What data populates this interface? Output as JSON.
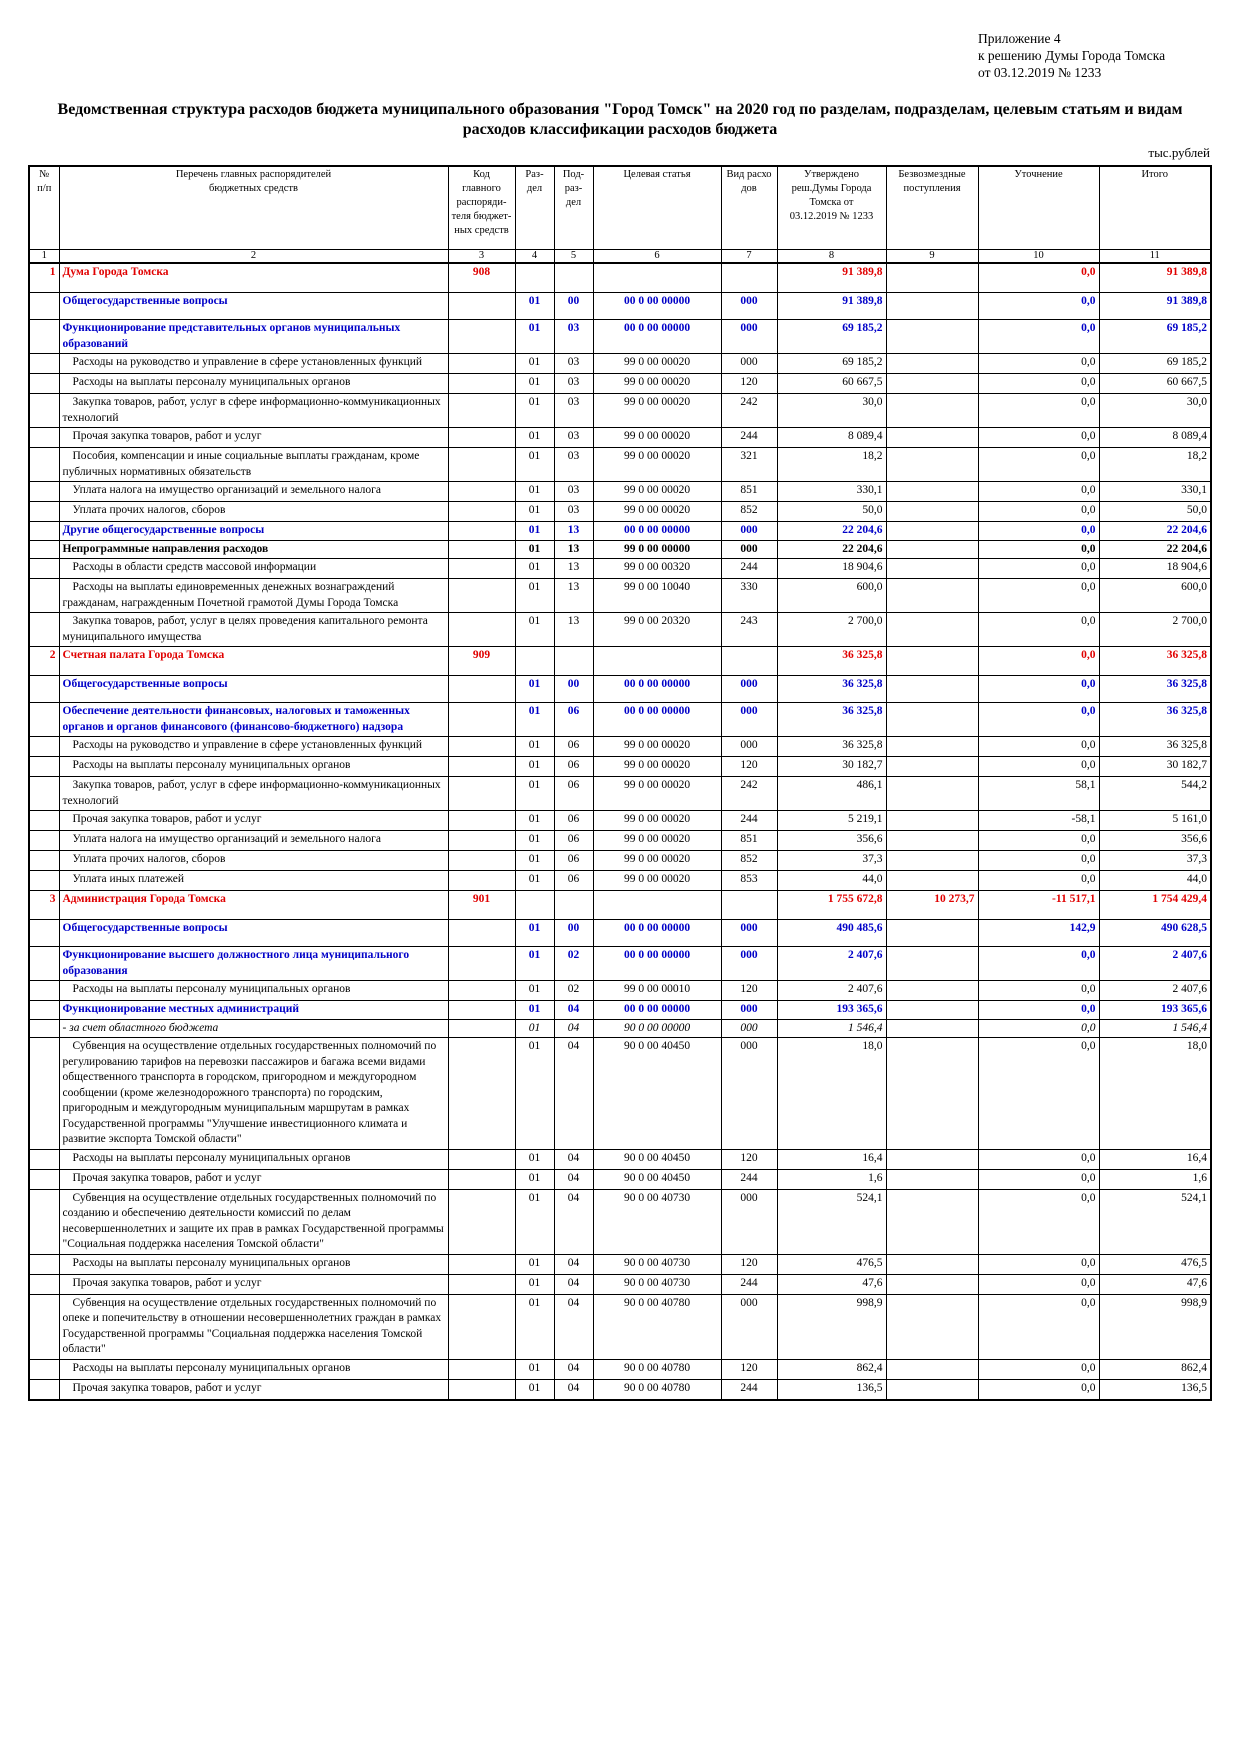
{
  "header": {
    "appendix": [
      "Приложение 4",
      "к решению Думы Города Томска",
      "от 03.12.2019 № 1233"
    ],
    "title": "Ведомственная структура расходов бюджета муниципального образования \"Город Томск\" на 2020 год по разделам, подразделам, целевым статьям и видам расходов классификации расходов бюджета",
    "unit": "тыс.рублей"
  },
  "table": {
    "columns": [
      "№\nп/п",
      "Перечень главных распорядителей\nбюджетных средств",
      "Код\nглавного\nраспоряди-\nтеля бюджет-\nных средств",
      "Раз-\nдел",
      "Под-\nраз-\nдел",
      "Целевая статья",
      "Вид расхо\nдов",
      "Утверждено\nреш.Думы Города\nТомска от\n03.12.2019 № 1233",
      "Безвозмездные\nпоступления",
      "Уточнение",
      "Итого"
    ],
    "column_numbers": [
      "1",
      "2",
      "3",
      "4",
      "5",
      "6",
      "7",
      "8",
      "9",
      "10",
      "11"
    ],
    "rows": [
      {
        "style": "org",
        "cells": [
          "1",
          "Дума Города Томска",
          "908",
          null,
          null,
          null,
          null,
          "91 389,8",
          null,
          "0,0",
          "91 389,8"
        ]
      },
      {
        "style": "section",
        "cells": [
          null,
          "Общегосударственные вопросы",
          null,
          "01",
          "00",
          "00 0 00 00000",
          "000",
          "91 389,8",
          null,
          "0,0",
          "91 389,8"
        ]
      },
      {
        "style": "sub",
        "cells": [
          null,
          "Функционирование представительных органов муниципальных образований",
          null,
          "01",
          "03",
          "00 0 00 00000",
          "000",
          "69 185,2",
          null,
          "0,0",
          "69 185,2"
        ]
      },
      {
        "style": "item",
        "cells": [
          null,
          "Расходы на руководство и управление в сфере установленных функций",
          null,
          "01",
          "03",
          "99 0 00 00020",
          "000",
          "69 185,2",
          null,
          "0,0",
          "69 185,2"
        ]
      },
      {
        "style": "item",
        "cells": [
          null,
          "Расходы на выплаты персоналу муниципальных органов",
          null,
          "01",
          "03",
          "99 0 00 00020",
          "120",
          "60 667,5",
          null,
          "0,0",
          "60 667,5"
        ]
      },
      {
        "style": "item",
        "cells": [
          null,
          "Закупка товаров, работ, услуг в сфере информационно-коммуникационных технологий",
          null,
          "01",
          "03",
          "99 0 00 00020",
          "242",
          "30,0",
          null,
          "0,0",
          "30,0"
        ]
      },
      {
        "style": "item",
        "cells": [
          null,
          "Прочая закупка товаров, работ и услуг",
          null,
          "01",
          "03",
          "99 0 00 00020",
          "244",
          "8 089,4",
          null,
          "0,0",
          "8 089,4"
        ]
      },
      {
        "style": "item",
        "cells": [
          null,
          "Пособия, компенсации и иные социальные выплаты гражданам, кроме публичных нормативных обязательств",
          null,
          "01",
          "03",
          "99 0 00 00020",
          "321",
          "18,2",
          null,
          "0,0",
          "18,2"
        ]
      },
      {
        "style": "item",
        "cells": [
          null,
          "Уплата налога на имущество организаций и земельного налога",
          null,
          "01",
          "03",
          "99 0 00 00020",
          "851",
          "330,1",
          null,
          "0,0",
          "330,1"
        ]
      },
      {
        "style": "item",
        "cells": [
          null,
          "Уплата прочих налогов, сборов",
          null,
          "01",
          "03",
          "99 0 00 00020",
          "852",
          "50,0",
          null,
          "0,0",
          "50,0"
        ]
      },
      {
        "style": "sub",
        "cells": [
          null,
          "Другие общегосударственные вопросы",
          null,
          "01",
          "13",
          "00 0 00 00000",
          "000",
          "22 204,6",
          null,
          "0,0",
          "22 204,6"
        ]
      },
      {
        "style": "bold",
        "cells": [
          null,
          "Непрограммные направления расходов",
          null,
          "01",
          "13",
          "99 0 00 00000",
          "000",
          "22 204,6",
          null,
          "0,0",
          "22 204,6"
        ]
      },
      {
        "style": "item",
        "cells": [
          null,
          "Расходы в области средств массовой информации",
          null,
          "01",
          "13",
          "99 0 00 00320",
          "244",
          "18 904,6",
          null,
          "0,0",
          "18 904,6"
        ]
      },
      {
        "style": "item",
        "cells": [
          null,
          "Расходы на выплаты единовременных денежных вознаграждений гражданам, награжденным Почетной грамотой Думы Города Томска",
          null,
          "01",
          "13",
          "99 0 00 10040",
          "330",
          "600,0",
          null,
          "0,0",
          "600,0"
        ]
      },
      {
        "style": "item",
        "cells": [
          null,
          "Закупка товаров, работ, услуг в целях проведения капитального ремонта муниципального имущества",
          null,
          "01",
          "13",
          "99 0 00 20320",
          "243",
          "2 700,0",
          null,
          "0,0",
          "2 700,0"
        ]
      },
      {
        "style": "org",
        "cells": [
          "2",
          "Счетная палата Города Томска",
          "909",
          null,
          null,
          null,
          null,
          "36 325,8",
          null,
          "0,0",
          "36 325,8"
        ]
      },
      {
        "style": "section",
        "cells": [
          null,
          "Общегосударственные вопросы",
          null,
          "01",
          "00",
          "00 0 00 00000",
          "000",
          "36 325,8",
          null,
          "0,0",
          "36 325,8"
        ]
      },
      {
        "style": "sub",
        "cells": [
          null,
          "Обеспечение деятельности финансовых, налоговых и таможенных органов и органов финансового (финансово-бюджетного) надзора",
          null,
          "01",
          "06",
          "00 0 00 00000",
          "000",
          "36 325,8",
          null,
          "0,0",
          "36 325,8"
        ]
      },
      {
        "style": "item",
        "cells": [
          null,
          "Расходы на руководство и управление в сфере установленных функций",
          null,
          "01",
          "06",
          "99 0 00 00020",
          "000",
          "36 325,8",
          null,
          "0,0",
          "36 325,8"
        ]
      },
      {
        "style": "item",
        "cells": [
          null,
          "Расходы на выплаты персоналу муниципальных органов",
          null,
          "01",
          "06",
          "99 0 00 00020",
          "120",
          "30 182,7",
          null,
          "0,0",
          "30 182,7"
        ]
      },
      {
        "style": "item",
        "cells": [
          null,
          "Закупка товаров, работ, услуг в сфере информационно-коммуникационных технологий",
          null,
          "01",
          "06",
          "99 0 00 00020",
          "242",
          "486,1",
          null,
          "58,1",
          "544,2"
        ]
      },
      {
        "style": "item",
        "cells": [
          null,
          "Прочая закупка товаров, работ и услуг",
          null,
          "01",
          "06",
          "99 0 00 00020",
          "244",
          "5 219,1",
          null,
          "-58,1",
          "5 161,0"
        ]
      },
      {
        "style": "item",
        "cells": [
          null,
          "Уплата налога на имущество организаций и земельного налога",
          null,
          "01",
          "06",
          "99 0 00 00020",
          "851",
          "356,6",
          null,
          "0,0",
          "356,6"
        ]
      },
      {
        "style": "item",
        "cells": [
          null,
          "Уплата прочих налогов, сборов",
          null,
          "01",
          "06",
          "99 0 00 00020",
          "852",
          "37,3",
          null,
          "0,0",
          "37,3"
        ]
      },
      {
        "style": "item",
        "cells": [
          null,
          "Уплата иных платежей",
          null,
          "01",
          "06",
          "99 0 00 00020",
          "853",
          "44,0",
          null,
          "0,0",
          "44,0"
        ]
      },
      {
        "style": "org",
        "cells": [
          "3",
          "Администрация Города Томска",
          "901",
          null,
          null,
          null,
          null,
          "1 755 672,8",
          "10 273,7",
          "-11 517,1",
          "1 754 429,4"
        ]
      },
      {
        "style": "section",
        "cells": [
          null,
          "Общегосударственные вопросы",
          null,
          "01",
          "00",
          "00 0 00 00000",
          "000",
          "490 485,6",
          null,
          "142,9",
          "490 628,5"
        ]
      },
      {
        "style": "sub",
        "cells": [
          null,
          "Функционирование высшего должностного лица муниципального образования",
          null,
          "01",
          "02",
          "00 0 00 00000",
          "000",
          "2 407,6",
          null,
          "0,0",
          "2 407,6"
        ]
      },
      {
        "style": "item",
        "cells": [
          null,
          "Расходы на выплаты персоналу муниципальных органов",
          null,
          "01",
          "02",
          "99 0 00 00010",
          "120",
          "2 407,6",
          null,
          "0,0",
          "2 407,6"
        ]
      },
      {
        "style": "sub",
        "cells": [
          null,
          "Функционирование местных администраций",
          null,
          "01",
          "04",
          "00 0 00 00000",
          "000",
          "193 365,6",
          null,
          "0,0",
          "193 365,6"
        ]
      },
      {
        "style": "italic",
        "cells": [
          null,
          "- за счет областного бюджета",
          null,
          "01",
          "04",
          "90 0 00 00000",
          "000",
          "1 546,4",
          null,
          "0,0",
          "1 546,4"
        ]
      },
      {
        "style": "item",
        "cells": [
          null,
          "Субвенция на осуществление отдельных государственных полномочий по регулированию тарифов на перевозки пассажиров и багажа всеми видами общественного транспорта в городском, пригородном и междугородном сообщении (кроме железнодорожного транспорта) по городским, пригородным и междугородным муниципальным маршрутам в рамках Государственной программы \"Улучшение инвестиционного климата и развитие экспорта Томской области\"",
          null,
          "01",
          "04",
          "90 0 00 40450",
          "000",
          "18,0",
          null,
          "0,0",
          "18,0"
        ]
      },
      {
        "style": "item",
        "cells": [
          null,
          "Расходы на выплаты персоналу муниципальных органов",
          null,
          "01",
          "04",
          "90 0 00 40450",
          "120",
          "16,4",
          null,
          "0,0",
          "16,4"
        ]
      },
      {
        "style": "item",
        "cells": [
          null,
          "Прочая закупка товаров, работ и услуг",
          null,
          "01",
          "04",
          "90 0 00 40450",
          "244",
          "1,6",
          null,
          "0,0",
          "1,6"
        ]
      },
      {
        "style": "item",
        "cells": [
          null,
          "Субвенция на осуществление отдельных государственных полномочий по созданию и обеспечению деятельности комиссий по делам несовершеннолетних и защите их прав в рамках Государственной программы \"Социальная поддержка населения Томской области\"",
          null,
          "01",
          "04",
          "90 0 00 40730",
          "000",
          "524,1",
          null,
          "0,0",
          "524,1"
        ]
      },
      {
        "style": "item",
        "cells": [
          null,
          "Расходы на выплаты персоналу муниципальных органов",
          null,
          "01",
          "04",
          "90 0 00 40730",
          "120",
          "476,5",
          null,
          "0,0",
          "476,5"
        ]
      },
      {
        "style": "item",
        "cells": [
          null,
          "Прочая закупка товаров, работ и услуг",
          null,
          "01",
          "04",
          "90 0 00 40730",
          "244",
          "47,6",
          null,
          "0,0",
          "47,6"
        ]
      },
      {
        "style": "item",
        "cells": [
          null,
          "Субвенция на осуществление отдельных государственных полномочий по опеке и попечительству в отношении несовершеннолетних граждан в рамках Государственной программы \"Социальная поддержка населения Томской области\"",
          null,
          "01",
          "04",
          "90 0 00 40780",
          "000",
          "998,9",
          null,
          "0,0",
          "998,9"
        ]
      },
      {
        "style": "item",
        "cells": [
          null,
          "Расходы на выплаты персоналу муниципальных органов",
          null,
          "01",
          "04",
          "90 0 00 40780",
          "120",
          "862,4",
          null,
          "0,0",
          "862,4"
        ]
      },
      {
        "style": "item",
        "cells": [
          null,
          "Прочая закупка товаров, работ и услуг",
          null,
          "01",
          "04",
          "90 0 00 40780",
          "244",
          "136,5",
          null,
          "0,0",
          "136,5"
        ]
      }
    ]
  }
}
